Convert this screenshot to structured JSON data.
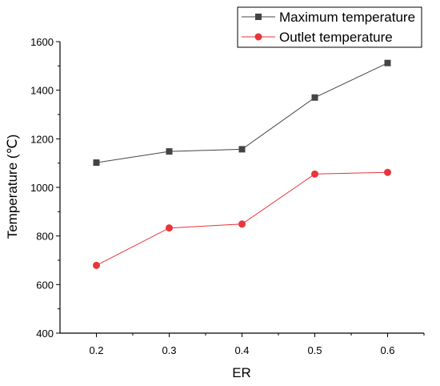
{
  "colors": {
    "max_series": "#444444",
    "outlet_series": "#e8343a",
    "axis": "#000000",
    "background": "#ffffff"
  },
  "chart_data": {
    "type": "line",
    "title": "",
    "xlabel": "ER",
    "ylabel": "Temperature (℃)",
    "x": [
      0.2,
      0.3,
      0.4,
      0.5,
      0.6
    ],
    "x_tick_labels": [
      "0.2",
      "0.3",
      "0.4",
      "0.5",
      "0.6"
    ],
    "xlim": [
      0.15,
      0.65
    ],
    "ylim": [
      400,
      1600
    ],
    "y_ticks": [
      400,
      600,
      800,
      1000,
      1200,
      1400,
      1600
    ],
    "y_tick_labels": [
      "400",
      "600",
      "800",
      "1000",
      "1200",
      "1400",
      "1600"
    ],
    "grid": false,
    "legend_position": "top-right",
    "series": [
      {
        "name": "Maximum temperature",
        "marker": "square",
        "values": [
          1102,
          1148,
          1157,
          1370,
          1512
        ]
      },
      {
        "name": "Outlet temperature",
        "marker": "circle",
        "values": [
          679,
          833,
          849,
          1055,
          1062
        ]
      }
    ]
  }
}
